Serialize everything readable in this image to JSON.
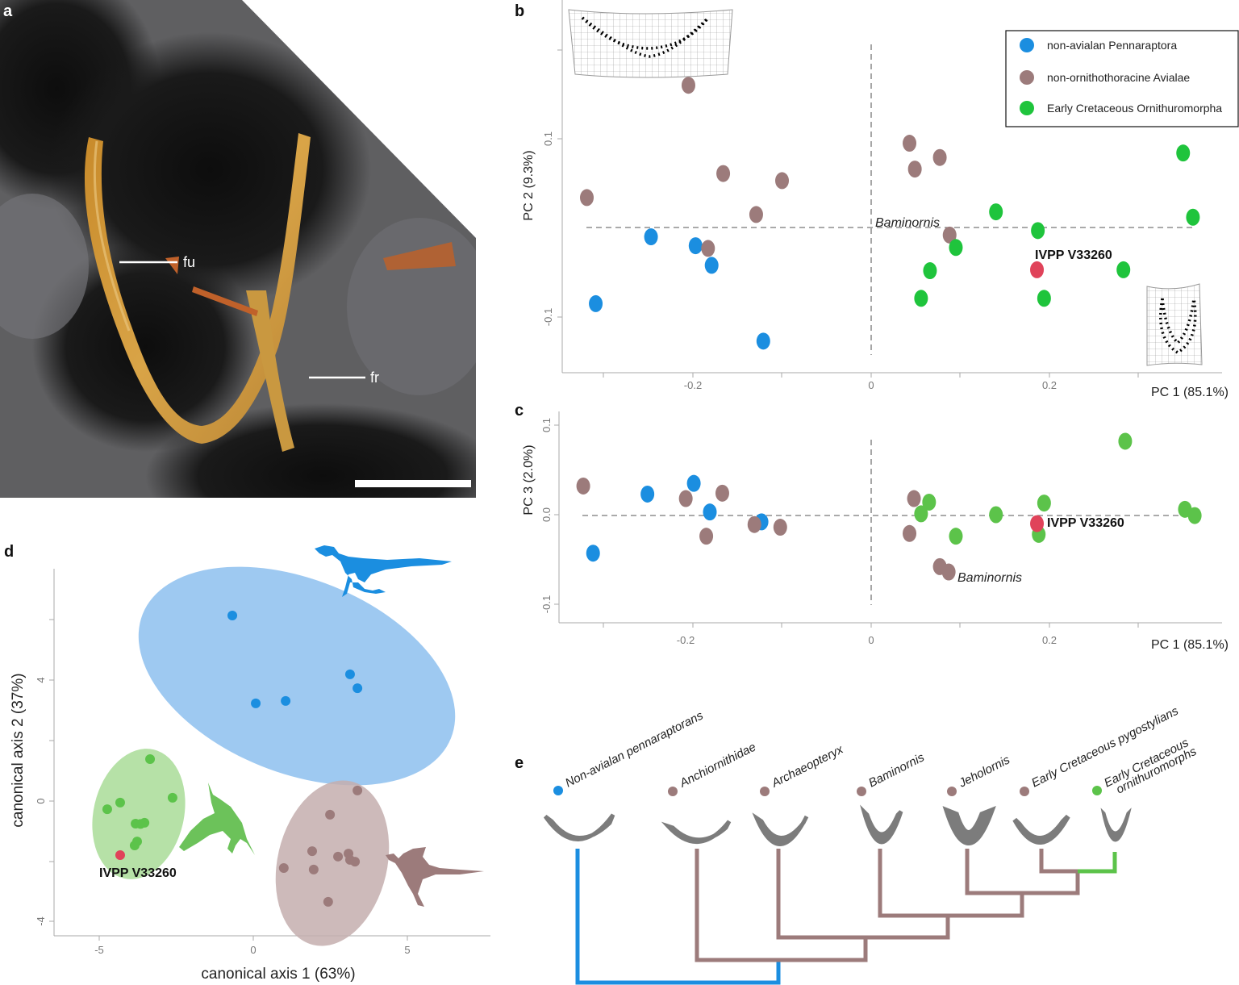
{
  "panel_labels": {
    "a": "a",
    "b": "b",
    "c": "c",
    "d": "d",
    "e": "e"
  },
  "photo": {
    "label_fu": "fu",
    "label_fr": "fr"
  },
  "colors": {
    "non_avialan": "#1b8ee0",
    "non_ornithothoracine": "#9c7b7b",
    "ornithuromorpha": "#1fc43c",
    "ornithuromorpha_light": "#5cc34a",
    "specimen": "#e0435a"
  },
  "chart_data": [
    {
      "type": "scatter",
      "panel": "b",
      "xlabel": "PC 1 (85.1%)",
      "ylabel": "PC 2 (9.3%)",
      "xticks": [
        "-0.2",
        "0",
        "0.2"
      ],
      "yticks": [
        "0.1",
        "-0.1"
      ],
      "xlim": [
        -0.35,
        0.4
      ],
      "ylim": [
        -0.16,
        0.26
      ],
      "legend_position": "top-right",
      "legend": [
        "non-avialan Pennaraptora",
        "non-ornithothoracine Avialae",
        "Early Cretaceous Ornithuromorpha"
      ],
      "series": [
        {
          "name": "non-avialan Pennaraptora",
          "color": "#1b8ee0",
          "points": [
            [
              -0.247,
              -0.01
            ],
            [
              -0.197,
              -0.02
            ],
            [
              -0.179,
              -0.042
            ],
            [
              -0.309,
              -0.085
            ],
            [
              -0.121,
              -0.127
            ]
          ]
        },
        {
          "name": "non-ornithothoracine Avialae",
          "color": "#9c7b7b",
          "points": [
            [
              -0.205,
              0.16
            ],
            [
              -0.319,
              0.034
            ],
            [
              -0.166,
              0.061
            ],
            [
              -0.1,
              0.053
            ],
            [
              -0.129,
              0.015
            ],
            [
              -0.183,
              -0.023
            ],
            [
              0.043,
              0.095
            ],
            [
              0.049,
              0.066
            ],
            [
              0.077,
              0.079
            ],
            [
              0.088,
              -0.008
            ]
          ]
        },
        {
          "name": "Early Cretaceous Ornithuromorpha",
          "color": "#1fc43c",
          "points": [
            [
              0.14,
              0.018
            ],
            [
              0.187,
              -0.003
            ],
            [
              0.095,
              -0.022
            ],
            [
              0.066,
              -0.048
            ],
            [
              0.056,
              -0.079
            ],
            [
              0.194,
              -0.079
            ],
            [
              0.283,
              -0.047
            ],
            [
              0.35,
              0.084
            ],
            [
              0.361,
              0.012
            ]
          ]
        },
        {
          "color": "#e0435a",
          "points": [
            [
              0.186,
              -0.047
            ]
          ]
        }
      ],
      "annotations": [
        {
          "text": "IVPP V33260",
          "style": "bold"
        },
        {
          "text": "Baminornis",
          "style": "italic"
        }
      ]
    },
    {
      "type": "scatter",
      "panel": "c",
      "xlabel": "PC 1 (85.1%)",
      "ylabel": "PC 3 (2.0%)",
      "xticks": [
        "-0.2",
        "0",
        "0.2"
      ],
      "yticks": [
        "0.1",
        "0.0",
        "-0.1"
      ],
      "xlim": [
        -0.35,
        0.4
      ],
      "ylim": [
        -0.12,
        0.11
      ],
      "series": [
        {
          "name": "non-avialan Pennaraptora",
          "color": "#1b8ee0",
          "points": [
            [
              -0.251,
              0.023
            ],
            [
              -0.199,
              0.035
            ],
            [
              -0.181,
              0.003
            ],
            [
              -0.123,
              -0.008
            ],
            [
              -0.312,
              -0.043
            ]
          ]
        },
        {
          "name": "non-ornithothoracine Avialae",
          "color": "#9c7b7b",
          "points": [
            [
              -0.323,
              0.032
            ],
            [
              -0.208,
              0.018
            ],
            [
              -0.167,
              0.024
            ],
            [
              -0.185,
              -0.024
            ],
            [
              -0.131,
              -0.011
            ],
            [
              -0.102,
              -0.014
            ],
            [
              0.048,
              0.018
            ],
            [
              0.043,
              -0.021
            ],
            [
              0.077,
              -0.058
            ],
            [
              0.087,
              -0.064
            ]
          ]
        },
        {
          "name": "Early Cretaceous Ornithuromorpha",
          "color": "#5cc34a",
          "points": [
            [
              0.065,
              0.014
            ],
            [
              0.056,
              0.001
            ],
            [
              0.095,
              -0.024
            ],
            [
              0.14,
              0.0
            ],
            [
              0.194,
              0.013
            ],
            [
              0.188,
              -0.022
            ],
            [
              0.285,
              0.082
            ],
            [
              0.352,
              0.006
            ],
            [
              0.363,
              -0.001
            ]
          ]
        },
        {
          "color": "#e0435a",
          "points": [
            [
              0.186,
              -0.01
            ]
          ]
        }
      ],
      "annotations": [
        {
          "text": "IVPP V33260",
          "style": "bold"
        },
        {
          "text": "Baminornis",
          "style": "italic"
        }
      ]
    },
    {
      "type": "scatter",
      "panel": "d",
      "xlabel": "canonical axis 1 (63%)",
      "ylabel": "canonical axis 2 (37%)",
      "xticks": [
        "-5",
        "0",
        "5"
      ],
      "yticks": [
        "4",
        "0",
        "-4"
      ],
      "xlim": [
        -6.4,
        7.7
      ],
      "ylim": [
        -4.5,
        7.7
      ],
      "series": [
        {
          "name": "non-avialan Pennaraptora",
          "color": "#1b8ee0",
          "points": [
            [
              -0.68,
              6.15
            ],
            [
              3.14,
              4.2
            ],
            [
              3.38,
              3.74
            ],
            [
              1.05,
              3.32
            ],
            [
              0.08,
              3.24
            ]
          ]
        },
        {
          "name": "Early Cretaceous Ornithuromorpha",
          "color": "#5cc34a",
          "points": [
            [
              -3.35,
              1.39
            ],
            [
              -2.62,
              0.11
            ],
            [
              -4.32,
              -0.05
            ],
            [
              -4.74,
              -0.27
            ],
            [
              -3.82,
              -0.75
            ],
            [
              -3.53,
              -0.72
            ],
            [
              -3.66,
              -0.76
            ],
            [
              -3.77,
              -1.34
            ],
            [
              -3.85,
              -1.47
            ]
          ]
        },
        {
          "name": "non-ornithothoracine Avialae",
          "color": "#9c7b7b",
          "points": [
            [
              3.38,
              0.35
            ],
            [
              2.49,
              -0.45
            ],
            [
              1.91,
              -1.66
            ],
            [
              1.96,
              -2.27
            ],
            [
              0.99,
              -2.22
            ],
            [
              2.75,
              -1.84
            ],
            [
              3.09,
              -1.74
            ],
            [
              3.14,
              -1.95
            ],
            [
              3.3,
              -2.01
            ],
            [
              2.43,
              -3.34
            ]
          ]
        },
        {
          "color": "#e0435a",
          "points": [
            [
              -4.32,
              -1.79
            ]
          ]
        }
      ],
      "annotations": [
        {
          "text": "IVPP V33260",
          "style": "bold"
        }
      ]
    }
  ],
  "tree": {
    "taxa": [
      {
        "label": "Non-avialan pennaraptorans",
        "color": "#1b8ee0"
      },
      {
        "label": "Anchiornithidae",
        "color": "#9c7b7b"
      },
      {
        "label": "Archaeopteryx",
        "color": "#9c7b7b"
      },
      {
        "label": "Baminornis",
        "color": "#9c7b7b"
      },
      {
        "label": "Jeholornis",
        "color": "#9c7b7b"
      },
      {
        "label": "Early Cretaceous pygostylians",
        "color": "#9c7b7b"
      },
      {
        "label": "Early Cretaceous",
        "label2": "ornithuromorphs",
        "color": "#5cc34a"
      }
    ]
  }
}
